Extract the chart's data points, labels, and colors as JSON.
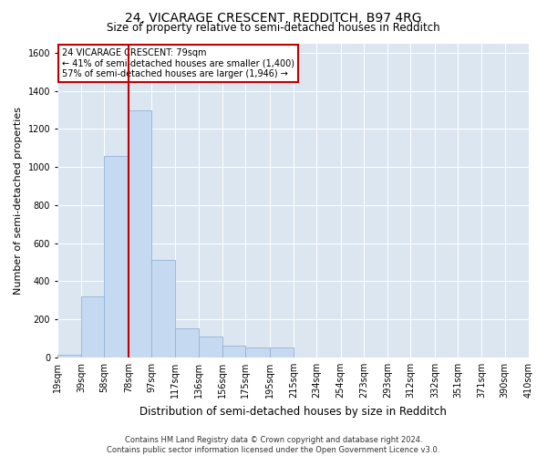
{
  "title": "24, VICARAGE CRESCENT, REDDITCH, B97 4RG",
  "subtitle": "Size of property relative to semi-detached houses in Redditch",
  "xlabel": "Distribution of semi-detached houses by size in Redditch",
  "ylabel": "Number of semi-detached properties",
  "footer_line1": "Contains HM Land Registry data © Crown copyright and database right 2024.",
  "footer_line2": "Contains public sector information licensed under the Open Government Licence v3.0.",
  "property_label": "24 VICARAGE CRESCENT: 79sqm",
  "annotation_line1": "← 41% of semi-detached houses are smaller (1,400)",
  "annotation_line2": "57% of semi-detached houses are larger (1,946) →",
  "bin_edges": [
    19,
    39,
    58,
    78,
    97,
    117,
    136,
    156,
    175,
    195,
    215,
    234,
    254,
    273,
    293,
    312,
    332,
    351,
    371,
    390,
    410
  ],
  "bin_labels": [
    "19sqm",
    "39sqm",
    "58sqm",
    "78sqm",
    "97sqm",
    "117sqm",
    "136sqm",
    "156sqm",
    "175sqm",
    "195sqm",
    "215sqm",
    "234sqm",
    "254sqm",
    "273sqm",
    "293sqm",
    "312sqm",
    "332sqm",
    "351sqm",
    "371sqm",
    "390sqm",
    "410sqm"
  ],
  "counts": [
    15,
    320,
    1060,
    1300,
    510,
    155,
    110,
    60,
    50,
    50,
    0,
    0,
    0,
    0,
    0,
    0,
    0,
    0,
    0,
    0
  ],
  "bar_color": "#c5d9f1",
  "bar_edge_color": "#95b3d7",
  "highlight_color": "#c00000",
  "ylim": [
    0,
    1650
  ],
  "yticks": [
    0,
    200,
    400,
    600,
    800,
    1000,
    1200,
    1400,
    1600
  ],
  "red_line_x": 78,
  "annotation_box_edge": "#c00000",
  "plot_bg_color": "#dce6f1",
  "grid_color": "#ffffff",
  "title_fontsize": 10,
  "subtitle_fontsize": 8.5,
  "ylabel_fontsize": 8,
  "xlabel_fontsize": 8.5,
  "tick_fontsize": 7,
  "footer_fontsize": 6
}
